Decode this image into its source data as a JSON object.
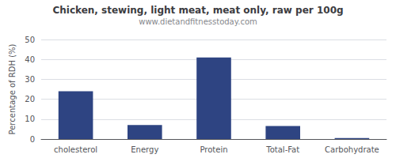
{
  "chart_data": {
    "type": "bar",
    "title": "Chicken, stewing, light meat, meat only, raw per 100g",
    "subtitle": "www.dietandfitnesstoday.com",
    "categories": [
      "cholesterol",
      "Energy",
      "Protein",
      "Total-Fat",
      "Carbohydrate"
    ],
    "values": [
      24,
      7,
      41,
      6.5,
      0.5
    ],
    "color": "#2e4482",
    "ylabel": "Percentage of RDH (%)",
    "ylim": [
      0,
      50
    ],
    "yticks": [
      0,
      10,
      20,
      30,
      40,
      50
    ],
    "grid": true
  }
}
